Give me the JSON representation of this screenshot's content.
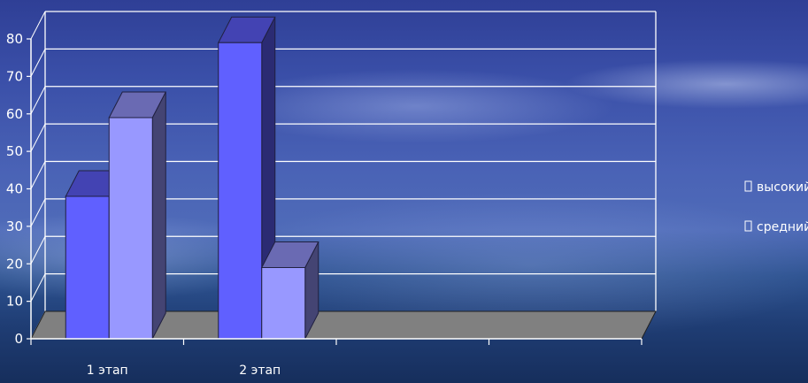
{
  "chart_data": {
    "type": "bar",
    "style": "3d-clustered",
    "categories": [
      "1 этап",
      "2 этап",
      "",
      ""
    ],
    "series": [
      {
        "name": "высокий",
        "values": [
          38,
          79,
          null,
          null
        ],
        "color": "#6060ff"
      },
      {
        "name": "средний",
        "values": [
          59,
          19,
          null,
          null
        ],
        "color": "#9898ff"
      }
    ],
    "ylim": [
      0,
      80
    ],
    "yticks": [
      0,
      10,
      20,
      30,
      40,
      50,
      60,
      70,
      80
    ],
    "grid": true,
    "legend_position": "right",
    "colors": {
      "floor": "#808080",
      "gridline": "#ffffff",
      "text": "#ffffff"
    }
  }
}
